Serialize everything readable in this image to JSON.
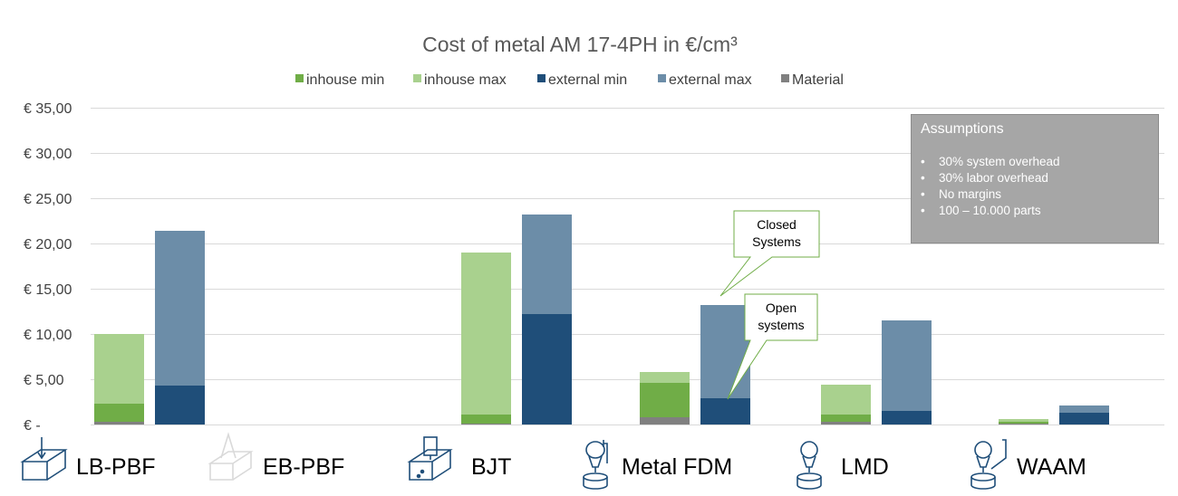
{
  "chart_data": {
    "type": "bar",
    "title": "Cost of metal AM 17-4PH in €/cm³",
    "yticks": [
      "€ -",
      "€ 5,00",
      "€ 10,00",
      "€ 15,00",
      "€ 20,00",
      "€ 25,00",
      "€ 30,00",
      "€ 35,00"
    ],
    "ylim": [
      0,
      35
    ],
    "grid": true,
    "legend_position": "top",
    "legend": [
      {
        "name": "inhouse min",
        "color": "#70ad47"
      },
      {
        "name": "inhouse max",
        "color": "#a9d18e"
      },
      {
        "name": "external min",
        "color": "#1f4e79"
      },
      {
        "name": "external max",
        "color": "#6c8da8"
      },
      {
        "name": "Material",
        "color": "#808080"
      }
    ],
    "categories": [
      "LB-PBF",
      "EB-PBF",
      "BJT",
      "Metal FDM",
      "LMD",
      "WAAM"
    ],
    "series": [
      {
        "name": "Material",
        "values": [
          0.3,
          null,
          0.1,
          0.8,
          0.3,
          0.1
        ]
      },
      {
        "name": "inhouse min",
        "values": [
          2.3,
          null,
          1.1,
          4.6,
          1.1,
          0.3
        ]
      },
      {
        "name": "inhouse max",
        "values": [
          10.0,
          null,
          19.0,
          5.8,
          4.4,
          0.6
        ]
      },
      {
        "name": "external min",
        "values": [
          4.3,
          null,
          12.2,
          2.9,
          1.5,
          1.3
        ]
      },
      {
        "name": "external max",
        "values": [
          21.4,
          null,
          23.2,
          13.2,
          11.5,
          2.1
        ]
      }
    ]
  },
  "assumptions": {
    "title": "Assumptions",
    "items": [
      "30% system overhead",
      "30% labor overhead",
      "No margins",
      "100 – 10.000 parts"
    ]
  },
  "callouts": {
    "closed": [
      "Closed",
      "Systems"
    ],
    "open": [
      "Open",
      "systems"
    ]
  },
  "processes": [
    "LB-PBF",
    "EB-PBF",
    "BJT",
    "Metal FDM",
    "LMD",
    "WAAM"
  ]
}
